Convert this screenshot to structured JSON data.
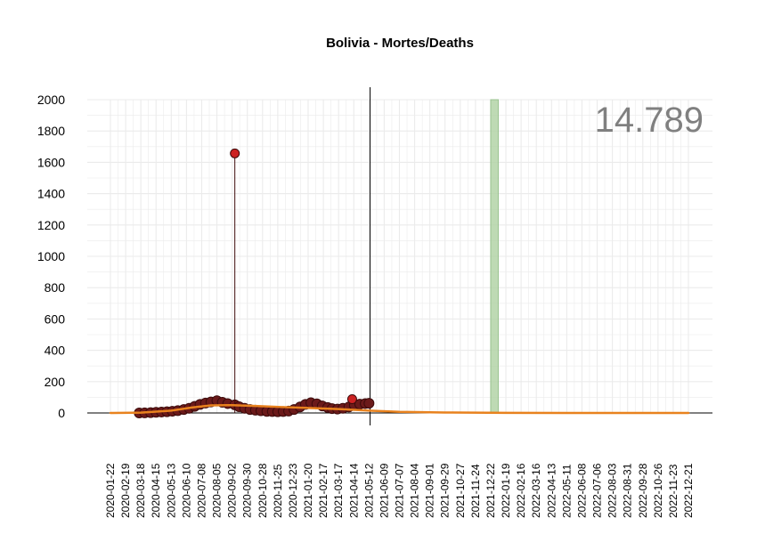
{
  "chart_data": {
    "type": "scatter",
    "title": "Bolivia - Mortes/Deaths",
    "annotation": "14.789",
    "xlabel": "",
    "ylabel": "",
    "ylim": [
      0,
      2000
    ],
    "yticks": [
      0,
      200,
      400,
      600,
      800,
      1000,
      1200,
      1400,
      1600,
      1800,
      2000
    ],
    "x_range": [
      "2020-01-22",
      "2022-12-31"
    ],
    "xticks": [
      "2020-01-22",
      "2020-02-19",
      "2020-03-18",
      "2020-04-15",
      "2020-05-13",
      "2020-06-10",
      "2020-07-08",
      "2020-08-05",
      "2020-09-02",
      "2020-09-30",
      "2020-10-28",
      "2020-11-25",
      "2020-12-23",
      "2021-01-20",
      "2021-02-17",
      "2021-03-17",
      "2021-04-14",
      "2021-05-12",
      "2021-06-09",
      "2021-07-07",
      "2021-08-04",
      "2021-09-01",
      "2021-09-29",
      "2021-10-27",
      "2021-11-24",
      "2021-12-22",
      "2022-01-19",
      "2022-02-16",
      "2022-03-16",
      "2022-04-13",
      "2022-05-11",
      "2022-06-08",
      "2022-07-06",
      "2022-08-03",
      "2022-08-31",
      "2022-09-28",
      "2022-10-26",
      "2022-11-23",
      "2022-12-21"
    ],
    "grid": true,
    "vertical_line_date": "2021-05-14",
    "highlight_band": [
      "2021-12-22",
      "2022-01-05"
    ],
    "colors": {
      "points_fill": "#6b1a1a",
      "points_outline": "#3d0b0b",
      "highlight_point": "#cc2222",
      "trend": "#e8821e",
      "band": "#b3d4a8",
      "band_outline": "#8cbc80",
      "grid": "#ebebeb",
      "annotation": "#808080"
    },
    "series": [
      {
        "kind": "daily-deaths",
        "points": [
          [
            "2020-03-15",
            0
          ],
          [
            "2020-03-25",
            1
          ],
          [
            "2020-04-05",
            2
          ],
          [
            "2020-04-15",
            4
          ],
          [
            "2020-04-25",
            6
          ],
          [
            "2020-05-05",
            8
          ],
          [
            "2020-05-15",
            11
          ],
          [
            "2020-05-25",
            15
          ],
          [
            "2020-06-05",
            22
          ],
          [
            "2020-06-15",
            30
          ],
          [
            "2020-06-25",
            42
          ],
          [
            "2020-07-05",
            55
          ],
          [
            "2020-07-15",
            63
          ],
          [
            "2020-07-25",
            70
          ],
          [
            "2020-08-05",
            78
          ],
          [
            "2020-08-15",
            68
          ],
          [
            "2020-08-25",
            60
          ],
          [
            "2020-09-07",
            52
          ],
          [
            "2020-09-15",
            40
          ],
          [
            "2020-09-25",
            30
          ],
          [
            "2020-10-05",
            22
          ],
          [
            "2020-10-15",
            18
          ],
          [
            "2020-10-25",
            14
          ],
          [
            "2020-11-05",
            10
          ],
          [
            "2020-11-15",
            9
          ],
          [
            "2020-11-25",
            8
          ],
          [
            "2020-12-05",
            9
          ],
          [
            "2020-12-15",
            12
          ],
          [
            "2020-12-25",
            22
          ],
          [
            "2021-01-05",
            38
          ],
          [
            "2021-01-15",
            55
          ],
          [
            "2021-01-25",
            65
          ],
          [
            "2021-02-05",
            58
          ],
          [
            "2021-02-15",
            45
          ],
          [
            "2021-02-25",
            35
          ],
          [
            "2021-03-05",
            28
          ],
          [
            "2021-03-15",
            25
          ],
          [
            "2021-03-25",
            30
          ],
          [
            "2021-04-05",
            38
          ],
          [
            "2021-04-15",
            50
          ],
          [
            "2021-04-25",
            56
          ],
          [
            "2021-05-05",
            60
          ],
          [
            "2021-05-12",
            62
          ]
        ],
        "outliers": [
          [
            "2020-09-07",
            1657
          ],
          [
            "2021-04-11",
            88
          ]
        ]
      },
      {
        "kind": "trend",
        "points": [
          [
            "2020-01-22",
            0
          ],
          [
            "2020-03-18",
            2
          ],
          [
            "2020-05-13",
            15
          ],
          [
            "2020-06-20",
            35
          ],
          [
            "2020-07-25",
            48
          ],
          [
            "2020-09-02",
            50
          ],
          [
            "2020-10-15",
            45
          ],
          [
            "2020-12-01",
            38
          ],
          [
            "2021-01-20",
            32
          ],
          [
            "2021-03-17",
            25
          ],
          [
            "2021-05-12",
            15
          ],
          [
            "2021-07-07",
            7
          ],
          [
            "2021-09-29",
            3
          ],
          [
            "2022-01-19",
            1
          ],
          [
            "2022-06-08",
            0
          ],
          [
            "2022-12-21",
            0
          ]
        ]
      }
    ]
  }
}
